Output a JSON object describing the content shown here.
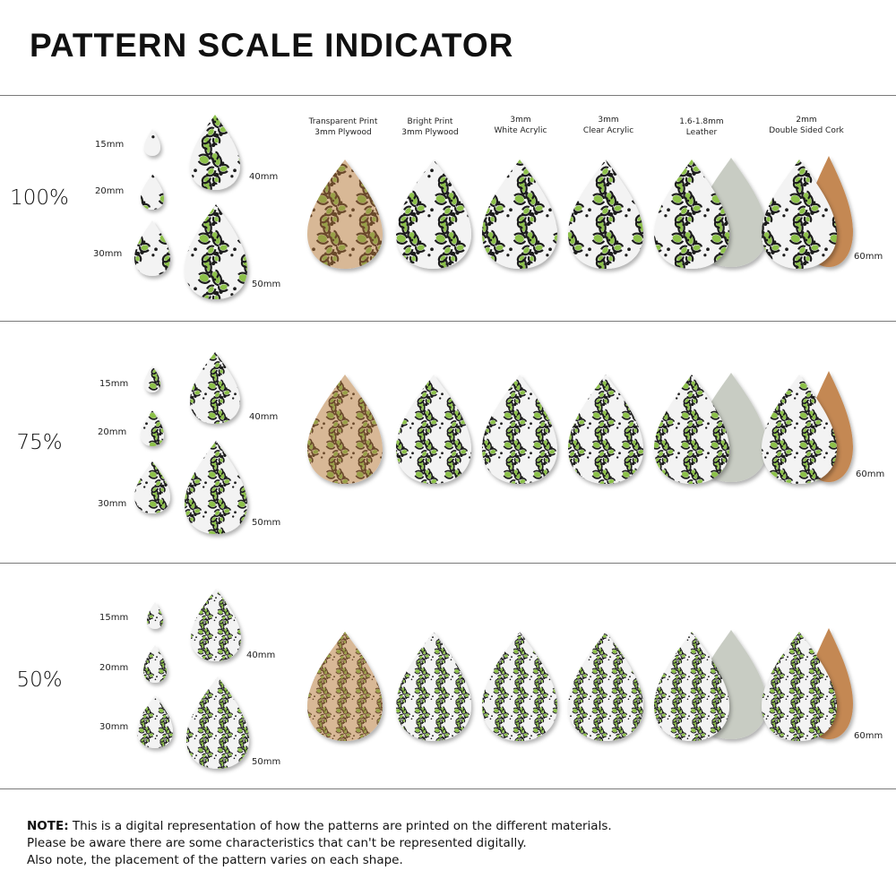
{
  "title": "PATTERN SCALE INDICATOR",
  "columns": [
    {
      "line1": "Transparent Print",
      "line2": "3mm Plywood"
    },
    {
      "line1": "Bright Print",
      "line2": "3mm Plywood"
    },
    {
      "line1": "3mm",
      "line2": "White Acrylic"
    },
    {
      "line1": "3mm",
      "line2": "Clear Acrylic"
    },
    {
      "line1": "1.6-1.8mm",
      "line2": "Leather"
    },
    {
      "line1": "2mm",
      "line2": "Double Sided Cork"
    }
  ],
  "sections": [
    {
      "scale": "100%",
      "pattern_scale": 1.0,
      "sizes": [
        "15mm",
        "20mm",
        "30mm",
        "40mm",
        "50mm"
      ],
      "big_size": "60mm"
    },
    {
      "scale": "75%",
      "pattern_scale": 0.75,
      "sizes": [
        "15mm",
        "20mm",
        "30mm",
        "40mm",
        "50mm"
      ],
      "big_size": "60mm"
    },
    {
      "scale": "50%",
      "pattern_scale": 0.5,
      "sizes": [
        "15mm",
        "20mm",
        "30mm",
        "40mm",
        "50mm"
      ],
      "big_size": "60mm"
    }
  ],
  "note": {
    "bold": "NOTE:",
    "line1": " This is a digital representation of how the patterns are printed on the different materials.",
    "line2": "Please be aware there are some characteristics that can't be represented digitally.",
    "line3": "Also note, the placement of the pattern varies on each shape."
  },
  "colors": {
    "plywood_base": "#d8b896",
    "plywood_spot": "#6a4a2c",
    "plywood_green": "#98a047",
    "print_base": "#f3f3f3",
    "print_spot": "#1c1c1c",
    "print_green": "#8cc04a",
    "leather_back": "#c8ccc3",
    "cork_back": "#c48852",
    "divider": "#7a7a7a"
  }
}
